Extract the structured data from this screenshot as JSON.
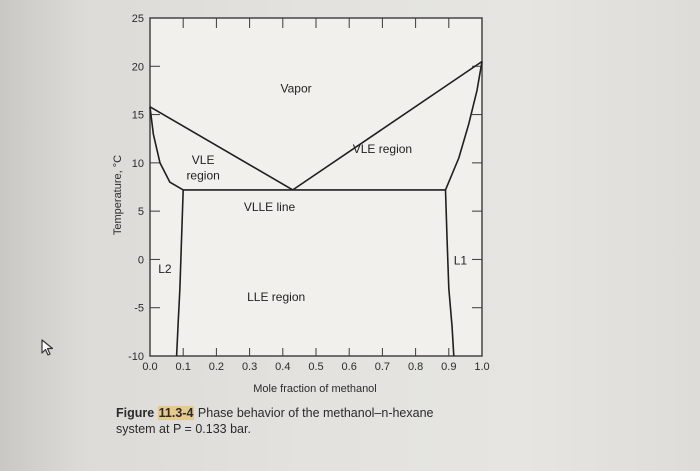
{
  "chart_data": {
    "type": "line",
    "xlabel": "Mole fraction of methanol",
    "ylabel": "Temperature, °C",
    "xlim": [
      0.0,
      1.0
    ],
    "ylim": [
      -10,
      25
    ],
    "x_ticks": [
      "0.0",
      "0.1",
      "0.2",
      "0.3",
      "0.4",
      "0.5",
      "0.6",
      "0.7",
      "0.8",
      "0.9",
      "1.0"
    ],
    "y_ticks": [
      "25",
      "20",
      "15",
      "10",
      "5",
      "0",
      "-5",
      "-10"
    ],
    "y_tick_values": [
      25,
      20,
      15,
      10,
      5,
      0,
      -5,
      -10
    ],
    "grid": false,
    "series": [
      {
        "x": [
          0.0,
          0.43
        ],
        "y": [
          15.8,
          7.2
        ]
      },
      {
        "x": [
          0.43,
          1.0
        ],
        "y": [
          7.2,
          20.5
        ]
      },
      {
        "x": [
          0.0,
          0.01,
          0.03,
          0.06,
          0.1
        ],
        "y": [
          15.8,
          13.0,
          10.0,
          8.0,
          7.2
        ]
      },
      {
        "x": [
          0.1,
          0.89
        ],
        "y": [
          7.2,
          7.2
        ]
      },
      {
        "x": [
          0.1,
          0.095,
          0.09,
          0.085,
          0.08
        ],
        "y": [
          7.2,
          2.0,
          -3.0,
          -6.5,
          -10.0
        ]
      },
      {
        "x": [
          0.89,
          0.895,
          0.9,
          0.91,
          0.915
        ],
        "y": [
          7.2,
          2.0,
          -3.0,
          -7.0,
          -10.0
        ]
      },
      {
        "x": [
          0.89,
          0.93,
          0.96,
          0.985,
          1.0
        ],
        "y": [
          7.2,
          10.5,
          14.0,
          17.5,
          20.5
        ]
      }
    ],
    "annotations": [
      {
        "text": "Vapor",
        "x": 0.44,
        "y": 17.3
      },
      {
        "text": "VLE",
        "x": 0.16,
        "y": 9.9
      },
      {
        "text": "region",
        "x": 0.16,
        "y": 8.3
      },
      {
        "text": "VLE region",
        "x": 0.7,
        "y": 11.0
      },
      {
        "text": "VLLE line",
        "x": 0.36,
        "y": 5.0
      },
      {
        "text": "LLE region",
        "x": 0.38,
        "y": -4.3
      },
      {
        "text": "L2",
        "x": 0.045,
        "y": -1.4
      },
      {
        "text": "L1",
        "x": 0.935,
        "y": -0.5
      }
    ]
  },
  "caption": {
    "figure_prefix": "Figure ",
    "figure_number": "11.3-4",
    "line1": " Phase behavior of the methanol–n-hexane",
    "line2": "system at P = 0.133 bar."
  },
  "icons": {
    "cursor": "cursor-icon"
  }
}
